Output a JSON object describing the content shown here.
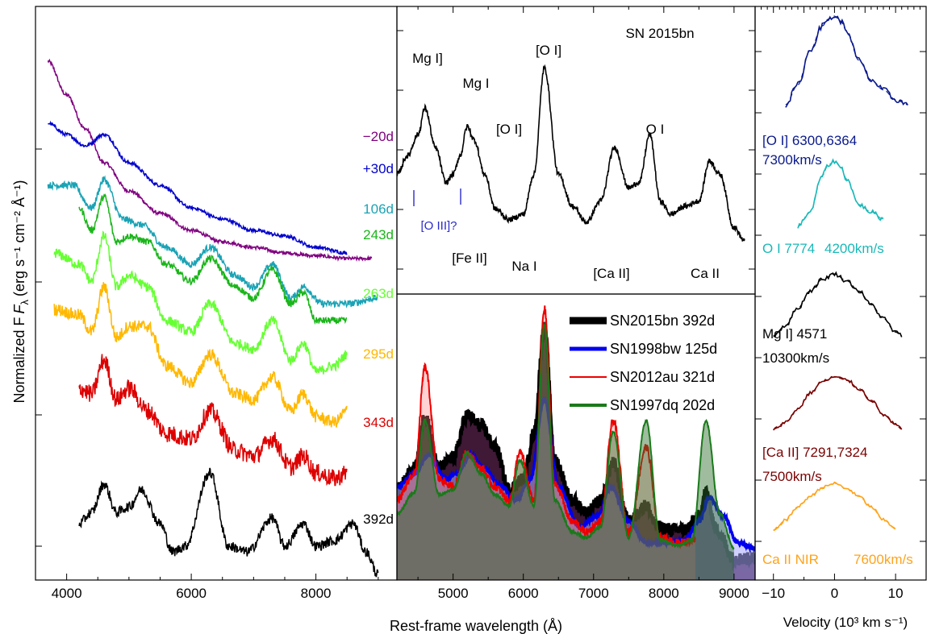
{
  "figure": {
    "xlabel_main": "Rest-frame wavelength (Å)",
    "ylabel": "Normalized F",
    "ylabel_sub": "λ",
    "ylabel_units": "(erg s⁻¹ cm⁻² Å⁻¹)",
    "xlabel_right": "Velocity (10³ km s⁻¹)"
  },
  "chart_data": [
    {
      "type": "line",
      "panel": "spectral sequence",
      "xlim": [
        3500,
        9300
      ],
      "x_ticks": [
        4000,
        6000,
        8000
      ],
      "series": [
        {
          "name": "−20d",
          "color": "#800080",
          "x": [
            3700,
            4000,
            4300,
            4600,
            5000,
            5500,
            6000,
            6500,
            7000,
            7500,
            8000,
            8500,
            8900
          ],
          "y": [
            9.2,
            8.6,
            8.0,
            7.4,
            6.9,
            6.5,
            6.2,
            6.0,
            5.9,
            5.8,
            5.75,
            5.7,
            5.7
          ]
        },
        {
          "name": "+30d",
          "color": "#0000cc",
          "x": [
            3700,
            4000,
            4300,
            4600,
            5000,
            5500,
            6000,
            6500,
            7000,
            7500,
            8000,
            8500
          ],
          "y": [
            8.1,
            7.9,
            7.7,
            7.9,
            7.4,
            7.0,
            6.6,
            6.4,
            6.2,
            6.1,
            5.9,
            5.8
          ]
        },
        {
          "name": "106d",
          "color": "#1aa3b5",
          "x": [
            3700,
            4100,
            4400,
            4600,
            4900,
            5200,
            5600,
            6000,
            6300,
            6700,
            7000,
            7300,
            7600,
            7800,
            8100,
            8500,
            9000
          ],
          "y": [
            7.0,
            7.0,
            6.6,
            7.1,
            6.4,
            6.3,
            5.9,
            5.6,
            5.9,
            5.4,
            5.2,
            5.6,
            5.0,
            5.2,
            4.9,
            4.9,
            5.0
          ]
        },
        {
          "name": "243d",
          "color": "#1ab51a",
          "x": [
            4200,
            4400,
            4600,
            4800,
            5000,
            5300,
            5600,
            6000,
            6300,
            6700,
            7000,
            7300,
            7600,
            7800,
            8000,
            8300,
            8500
          ],
          "y": [
            6.6,
            6.2,
            6.8,
            6.0,
            6.1,
            6.0,
            5.6,
            5.3,
            5.7,
            5.2,
            5.0,
            5.5,
            4.9,
            5.1,
            4.6,
            4.6,
            4.6
          ]
        },
        {
          "name": "263d",
          "color": "#66ff33",
          "x": [
            3800,
            4200,
            4400,
            4600,
            4800,
            5000,
            5300,
            5600,
            6000,
            6300,
            6700,
            7000,
            7300,
            7600,
            7800,
            8000,
            8300,
            8500
          ],
          "y": [
            5.8,
            5.6,
            5.3,
            6.1,
            5.2,
            5.4,
            5.2,
            4.6,
            4.4,
            4.9,
            4.2,
            4.1,
            4.6,
            3.9,
            4.2,
            3.7,
            3.8,
            4.0
          ]
        },
        {
          "name": "295d",
          "color": "#ffb800",
          "x": [
            3800,
            4200,
            4400,
            4600,
            4800,
            5000,
            5300,
            5600,
            6000,
            6300,
            6700,
            7000,
            7300,
            7600,
            7800,
            8000,
            8300,
            8500
          ],
          "y": [
            4.8,
            4.7,
            4.4,
            5.2,
            4.3,
            4.5,
            4.5,
            3.8,
            3.5,
            4.0,
            3.3,
            3.2,
            3.6,
            3.0,
            3.3,
            2.9,
            2.8,
            3.0
          ]
        },
        {
          "name": "343d",
          "color": "#dd0000",
          "x": [
            4200,
            4400,
            4600,
            4800,
            5000,
            5300,
            5600,
            6000,
            6300,
            6700,
            7000,
            7300,
            7600,
            7800,
            8000,
            8300,
            8500
          ],
          "y": [
            3.4,
            3.3,
            3.9,
            3.2,
            3.4,
            3.0,
            2.6,
            2.5,
            3.0,
            2.3,
            2.2,
            2.5,
            2.0,
            2.2,
            1.9,
            1.8,
            1.9
          ]
        },
        {
          "name": "392d",
          "color": "#000000",
          "x": [
            4200,
            4400,
            4600,
            4800,
            5000,
            5200,
            5500,
            5700,
            5900,
            6300,
            6600,
            6900,
            7300,
            7500,
            7800,
            8000,
            8300,
            8600,
            8800,
            9000
          ],
          "y": [
            1.0,
            1.2,
            1.7,
            1.2,
            1.3,
            1.6,
            1.0,
            0.5,
            0.6,
            1.9,
            0.6,
            0.5,
            1.1,
            0.6,
            1.0,
            0.6,
            0.7,
            1.0,
            0.5,
            0.1
          ]
        }
      ]
    },
    {
      "type": "line",
      "panel": "SN 2015bn line identification",
      "title": "SN 2015bn",
      "xlim": [
        4200,
        9300
      ],
      "labels": [
        "Mg I]",
        "Mg I",
        "[O I]",
        "[O I]",
        "O I",
        "[Fe II]",
        "Na I",
        "[Ca II]",
        "Ca II",
        "[O III]?"
      ],
      "series": [
        {
          "name": "SN 2015bn",
          "color": "#000000",
          "x": [
            4200,
            4350,
            4500,
            4600,
            4750,
            4900,
            5000,
            5100,
            5200,
            5300,
            5450,
            5600,
            5800,
            6000,
            6150,
            6300,
            6500,
            6700,
            6900,
            7100,
            7300,
            7500,
            7650,
            7800,
            7950,
            8100,
            8300,
            8500,
            8650,
            8800,
            9000,
            9150
          ],
          "y": [
            0.45,
            0.52,
            0.6,
            0.7,
            0.55,
            0.42,
            0.45,
            0.52,
            0.63,
            0.58,
            0.45,
            0.32,
            0.28,
            0.3,
            0.45,
            0.85,
            0.45,
            0.33,
            0.27,
            0.35,
            0.55,
            0.4,
            0.42,
            0.6,
            0.35,
            0.3,
            0.33,
            0.35,
            0.5,
            0.45,
            0.25,
            0.2
          ]
        }
      ]
    },
    {
      "type": "area",
      "panel": "comparison",
      "xlim": [
        4200,
        9300
      ],
      "x_ticks": [
        5000,
        6000,
        7000,
        8000,
        9000
      ],
      "legend": "top-right",
      "series": [
        {
          "name": "SN2015bn 392d",
          "color": "#000000",
          "x": [
            4200,
            4450,
            4600,
            4800,
            5000,
            5200,
            5400,
            5600,
            5800,
            6000,
            6150,
            6300,
            6450,
            6700,
            6900,
            7100,
            7280,
            7500,
            7750,
            7900,
            8100,
            8300,
            8500,
            8600,
            8750,
            9000,
            9300
          ],
          "y": [
            0.34,
            0.42,
            0.62,
            0.42,
            0.46,
            0.62,
            0.58,
            0.5,
            0.34,
            0.38,
            0.55,
            0.95,
            0.45,
            0.3,
            0.25,
            0.3,
            0.44,
            0.22,
            0.28,
            0.2,
            0.19,
            0.19,
            0.24,
            0.33,
            0.19,
            0.08,
            0.08
          ]
        },
        {
          "name": "SN1998bw 125d",
          "color": "#0000ee",
          "x": [
            4200,
            4450,
            4650,
            4900,
            5050,
            5250,
            5450,
            5650,
            5900,
            6100,
            6300,
            6500,
            6800,
            7050,
            7250,
            7500,
            7750,
            8000,
            8300,
            8500,
            8650,
            8850,
            9050,
            9300
          ],
          "y": [
            0.35,
            0.4,
            0.47,
            0.38,
            0.4,
            0.47,
            0.42,
            0.36,
            0.3,
            0.38,
            0.68,
            0.35,
            0.2,
            0.24,
            0.35,
            0.22,
            0.14,
            0.14,
            0.15,
            0.22,
            0.31,
            0.24,
            0.14,
            0.12
          ]
        },
        {
          "name": "SN2012au 321d",
          "color": "#ee0000",
          "x": [
            4200,
            4450,
            4600,
            4800,
            5000,
            5200,
            5400,
            5600,
            5800,
            5950,
            6150,
            6300,
            6450,
            6700,
            6900,
            7100,
            7280,
            7500,
            7750,
            7950,
            8200,
            8450
          ],
          "y": [
            0.3,
            0.4,
            0.8,
            0.38,
            0.35,
            0.48,
            0.42,
            0.35,
            0.3,
            0.48,
            0.3,
            1.02,
            0.36,
            0.22,
            0.18,
            0.22,
            0.6,
            0.18,
            0.5,
            0.16,
            0.14,
            0.15
          ]
        },
        {
          "name": "SN1997dq 202d",
          "color": "#1a7a1a",
          "x": [
            4200,
            4450,
            4600,
            4800,
            5000,
            5200,
            5400,
            5600,
            5800,
            5950,
            6150,
            6300,
            6450,
            6700,
            6900,
            7100,
            7280,
            7500,
            7750,
            7950,
            8200,
            8400,
            8600,
            8800,
            9000
          ],
          "y": [
            0.25,
            0.33,
            0.6,
            0.32,
            0.34,
            0.48,
            0.4,
            0.32,
            0.28,
            0.45,
            0.28,
            0.96,
            0.3,
            0.18,
            0.16,
            0.2,
            0.56,
            0.16,
            0.6,
            0.15,
            0.13,
            0.15,
            0.6,
            0.25,
            0.12
          ]
        }
      ]
    },
    {
      "type": "line",
      "panel": "velocity profiles",
      "xlim": [
        -13,
        15
      ],
      "x_ticks": [
        -10,
        0,
        10
      ],
      "series": [
        {
          "name": "[O I] 6300,6364",
          "color": "#0a1a8c",
          "velocity_label": "7300km/s",
          "x": [
            -8,
            -6,
            -4,
            -2,
            -1,
            0,
            1,
            2,
            4,
            6,
            8,
            10,
            12
          ],
          "y": [
            0.1,
            0.3,
            0.65,
            0.9,
            0.97,
            1.0,
            0.95,
            0.85,
            0.55,
            0.35,
            0.25,
            0.15,
            0.1
          ]
        },
        {
          "name": "O I 7774",
          "color": "#1ab8b8",
          "velocity_label": "4200km/s",
          "x": [
            -6,
            -4,
            -2,
            -1,
            0,
            1,
            2,
            4,
            6,
            8
          ],
          "y": [
            0.1,
            0.3,
            0.8,
            0.95,
            1.0,
            0.92,
            0.75,
            0.4,
            0.3,
            0.2
          ]
        },
        {
          "name": "Mg I] 4571",
          "color": "#000000",
          "velocity_label": "10300km/s",
          "x": [
            -10,
            -8,
            -6,
            -4,
            -2,
            0,
            2,
            4,
            6,
            8,
            10,
            11
          ],
          "y": [
            0.1,
            0.25,
            0.5,
            0.75,
            0.92,
            1.0,
            0.9,
            0.75,
            0.55,
            0.35,
            0.15,
            0.1
          ]
        },
        {
          "name": "[Ca II] 7291,7324",
          "color": "#7a0000",
          "velocity_label": "7500km/s",
          "x": [
            -10,
            -8,
            -6,
            -4,
            -2,
            0,
            2,
            4,
            6,
            8,
            10,
            11
          ],
          "y": [
            0.1,
            0.22,
            0.45,
            0.72,
            0.92,
            1.0,
            0.95,
            0.8,
            0.6,
            0.35,
            0.18,
            0.1
          ]
        },
        {
          "name": "Ca II NIR",
          "color": "#ffa31a",
          "velocity_label": "7600km/s",
          "x": [
            -10,
            -8,
            -6,
            -4,
            -2,
            0,
            2,
            4,
            6,
            8,
            10
          ],
          "y": [
            0.1,
            0.3,
            0.55,
            0.75,
            0.92,
            1.0,
            0.9,
            0.75,
            0.55,
            0.3,
            0.15
          ]
        }
      ]
    }
  ]
}
